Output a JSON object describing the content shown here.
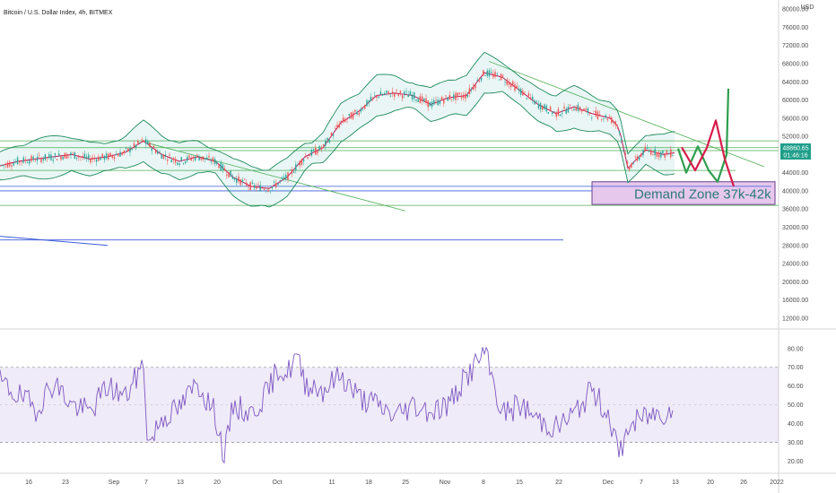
{
  "chart_data": [
    {
      "type": "candlestick",
      "title": "Bitcoin / U.S. Dollar Index, 4h, BITMEX",
      "currency": "USD",
      "yaxis_ticks": [
        "12000.00",
        "16000.00",
        "20000.00",
        "24000.00",
        "28000.00",
        "32000.00",
        "36000.00",
        "40000.00",
        "44000.00",
        "48000.00",
        "52000.00",
        "56000.00",
        "60000.00",
        "64000.00",
        "68000.00",
        "72000.00",
        "76000.00",
        "80000.00"
      ],
      "ylim": [
        10000,
        82000
      ],
      "xaxis_ticks": [
        "16",
        "23",
        "Sep",
        "7",
        "13",
        "20",
        "Oct",
        "11",
        "18",
        "25",
        "Nov",
        "8",
        "15",
        "22",
        "Dec",
        "7",
        "13",
        "20",
        "26",
        "2022"
      ],
      "current_price": "48860.65",
      "countdown": "01:46:16",
      "horizontal_levels": [
        51000,
        49500,
        48860,
        44500,
        41000,
        40000,
        36800,
        29200
      ],
      "price_path": {
        "x": [
          0,
          20,
          40,
          60,
          80,
          100,
          120,
          140,
          160,
          180,
          200,
          220,
          240,
          260,
          280,
          300,
          320,
          340,
          360,
          380,
          400,
          420,
          440,
          460,
          480,
          500,
          520,
          540,
          560,
          580,
          600,
          620,
          640,
          660,
          680,
          690,
          700,
          720,
          740,
          755
        ],
        "y": [
          45500,
          46500,
          47000,
          47500,
          48000,
          47000,
          47500,
          48500,
          51000,
          48000,
          46500,
          47500,
          46500,
          43000,
          41000,
          40500,
          43000,
          47500,
          49500,
          55000,
          57500,
          61000,
          61500,
          61000,
          59000,
          60500,
          61000,
          66000,
          65000,
          62000,
          59000,
          57000,
          58500,
          57000,
          56000,
          54000,
          45000,
          49000,
          48000,
          48500
        ]
      },
      "projection_green": [
        [
          756,
          49300
        ],
        [
          765,
          44000
        ],
        [
          778,
          49800
        ],
        [
          790,
          44500
        ],
        [
          800,
          42000
        ],
        [
          810,
          48000
        ],
        [
          812,
          62500
        ]
      ],
      "projection_red": [
        [
          760,
          49600
        ],
        [
          775,
          44500
        ],
        [
          788,
          49500
        ],
        [
          798,
          55500
        ],
        [
          808,
          47000
        ],
        [
          818,
          41000
        ]
      ],
      "annotation": "Demand Zone 37k-42k",
      "demand_zone": [
        37000,
        42000
      ]
    },
    {
      "type": "line",
      "indicator": "RSI",
      "yaxis_ticks": [
        "20.00",
        "30.00",
        "40.00",
        "50.00",
        "60.00",
        "70.00",
        "80.00"
      ],
      "ylim": [
        15,
        88
      ],
      "band": [
        30,
        70
      ],
      "midline": 50,
      "x": [
        0,
        20,
        40,
        60,
        80,
        100,
        120,
        140,
        160,
        165,
        180,
        200,
        220,
        240,
        250,
        260,
        280,
        300,
        310,
        320,
        330,
        340,
        360,
        380,
        400,
        420,
        440,
        460,
        480,
        500,
        520,
        540,
        550,
        560,
        580,
        600,
        620,
        640,
        660,
        680,
        690,
        700,
        720,
        740,
        750
      ],
      "values": [
        62,
        55,
        48,
        62,
        50,
        46,
        60,
        54,
        72,
        28,
        43,
        48,
        62,
        45,
        22,
        50,
        45,
        58,
        70,
        66,
        76,
        62,
        58,
        66,
        54,
        50,
        44,
        50,
        47,
        50,
        65,
        78,
        62,
        45,
        50,
        42,
        38,
        45,
        58,
        44,
        22,
        38,
        44,
        46,
        50
      ]
    }
  ]
}
